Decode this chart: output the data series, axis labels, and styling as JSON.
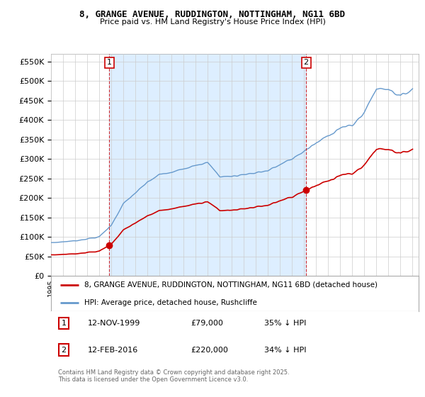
{
  "title_line1": "8, GRANGE AVENUE, RUDDINGTON, NOTTINGHAM, NG11 6BD",
  "title_line2": "Price paid vs. HM Land Registry's House Price Index (HPI)",
  "legend_label_red": "8, GRANGE AVENUE, RUDDINGTON, NOTTINGHAM, NG11 6BD (detached house)",
  "legend_label_blue": "HPI: Average price, detached house, Rushcliffe",
  "red_color": "#cc0000",
  "blue_color": "#6699cc",
  "shade_color": "#ddeeff",
  "annotation1_date": "12-NOV-1999",
  "annotation1_price": 79000,
  "annotation2_date": "12-FEB-2016",
  "annotation2_price": 220000,
  "ylim_min": 0,
  "ylim_max": 570000,
  "footer": "Contains HM Land Registry data © Crown copyright and database right 2025.\nThis data is licensed under the Open Government Licence v3.0.",
  "background_color": "#ffffff",
  "plot_bg_color": "#ffffff",
  "grid_color": "#cccccc"
}
